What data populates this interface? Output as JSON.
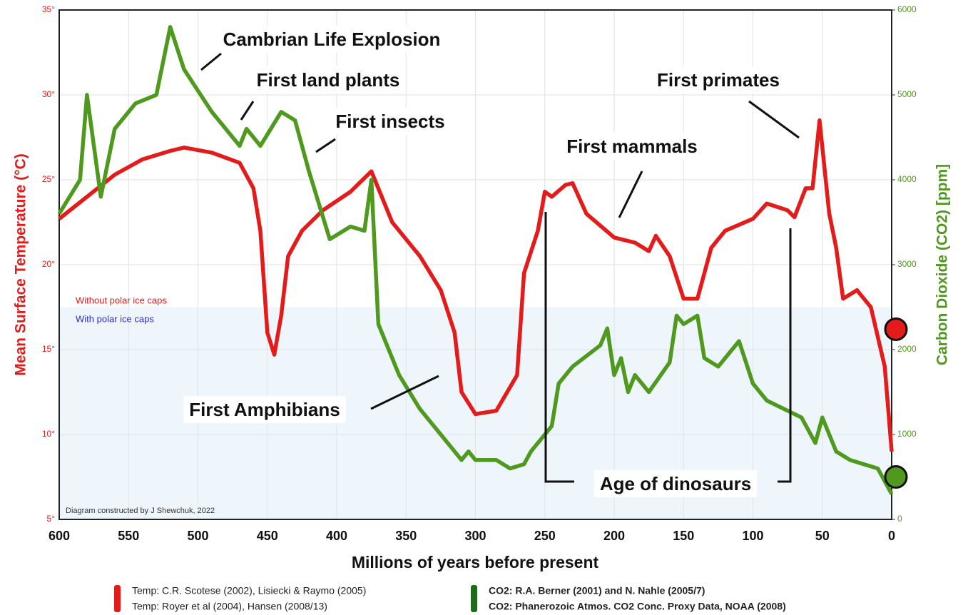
{
  "chart_data": {
    "type": "line",
    "xlabel": "Millions of years before present",
    "ylabel": "Mean Surface Temperature  (°C)",
    "y2label": "Carbon Dioxide (CO2) [ppm]",
    "xlim": [
      600,
      0
    ],
    "xticks": [
      600,
      550,
      500,
      450,
      400,
      350,
      300,
      250,
      200,
      150,
      100,
      50,
      0
    ],
    "ylim": [
      5,
      35
    ],
    "yticks": [
      {
        "value": 5,
        "label": "5°"
      },
      {
        "value": 10,
        "label": "10°"
      },
      {
        "value": 15,
        "label": "15°"
      },
      {
        "value": 20,
        "label": "20°"
      },
      {
        "value": 25,
        "label": "25°"
      },
      {
        "value": 30,
        "label": "30°"
      },
      {
        "value": 35,
        "label": "35°"
      }
    ],
    "y2lim": [
      0,
      6000
    ],
    "y2ticks": [
      0,
      1000,
      2000,
      3000,
      4000,
      5000,
      6000
    ],
    "grid": true,
    "ice_cap_band_top": 17.5,
    "series": [
      {
        "name": "Temperature",
        "color": "#e31b1b",
        "axis": "y",
        "present_marker": 16.2,
        "x": [
          600,
          580,
          560,
          540,
          520,
          510,
          490,
          470,
          460,
          455,
          450,
          445,
          440,
          435,
          425,
          410,
          390,
          375,
          360,
          340,
          325,
          315,
          310,
          300,
          285,
          270,
          265,
          255,
          250,
          245,
          235,
          230,
          220,
          200,
          185,
          175,
          170,
          160,
          150,
          140,
          130,
          120,
          100,
          90,
          75,
          70,
          62,
          57,
          52,
          45,
          40,
          35,
          25,
          15,
          5,
          0
        ],
        "values": [
          22.7,
          24,
          25.3,
          26.2,
          26.7,
          26.9,
          26.6,
          26,
          24.5,
          22,
          16,
          14.7,
          17,
          20.5,
          22,
          23.2,
          24.3,
          25.5,
          22.5,
          20.5,
          18.5,
          16,
          12.5,
          11.2,
          11.4,
          13.5,
          19.5,
          22,
          24.3,
          24,
          24.7,
          24.8,
          23,
          21.6,
          21.3,
          20.8,
          21.7,
          20.5,
          18,
          18,
          21,
          22,
          22.7,
          23.6,
          23.2,
          22.8,
          24.5,
          24.5,
          28.5,
          23,
          21,
          18,
          18.5,
          17.5,
          14,
          9
        ]
      },
      {
        "name": "CO2",
        "color": "#4f9a1e",
        "axis": "y2",
        "present_marker": 500,
        "x": [
          600,
          585,
          580,
          570,
          560,
          545,
          530,
          520,
          510,
          490,
          470,
          465,
          455,
          440,
          430,
          420,
          405,
          390,
          380,
          375,
          370,
          355,
          340,
          320,
          310,
          305,
          300,
          285,
          275,
          265,
          260,
          245,
          240,
          230,
          210,
          205,
          200,
          195,
          190,
          185,
          175,
          160,
          155,
          150,
          140,
          135,
          125,
          115,
          110,
          100,
          90,
          65,
          55,
          50,
          45,
          40,
          30,
          10,
          0
        ],
        "values": [
          3600,
          4000,
          5000,
          3800,
          4600,
          4900,
          5000,
          5800,
          5300,
          4800,
          4400,
          4600,
          4400,
          4800,
          4700,
          4100,
          3300,
          3450,
          3400,
          4000,
          2300,
          1700,
          1300,
          900,
          700,
          800,
          700,
          700,
          600,
          650,
          800,
          1100,
          1600,
          1800,
          2050,
          2250,
          1700,
          1900,
          1500,
          1700,
          1500,
          1850,
          2400,
          2300,
          2400,
          1900,
          1800,
          2000,
          2100,
          1600,
          1400,
          1200,
          900,
          1200,
          1000,
          800,
          700,
          600,
          300
        ]
      }
    ],
    "band_legend": [
      {
        "text": "Without polar ice caps",
        "color": "#e31b1b"
      },
      {
        "text": "With polar ice caps",
        "color": "#2a2ad6"
      }
    ],
    "credit": "Diagram constructed by J Shewchuk, 2022",
    "annotations": [
      "Cambrian Life Explosion",
      "First land plants",
      "First insects",
      "First mammals",
      "First primates",
      "First Amphibians",
      "Age of dinosaurs"
    ],
    "sources": [
      {
        "color": "#e31b1b",
        "lines": [
          "Temp: C.R. Scotese (2002), Lisiecki & Raymo (2005)",
          "Temp: Royer et al (2004), Hansen (2008/13)"
        ]
      },
      {
        "color": "#1e6b1e",
        "lines": [
          "CO2: R.A. Berner (2001) and N. Nahle (2005/7)",
          "CO2: Phanerozoic Atmos. CO2 Conc. Proxy Data, NOAA (2008)"
        ]
      }
    ]
  }
}
